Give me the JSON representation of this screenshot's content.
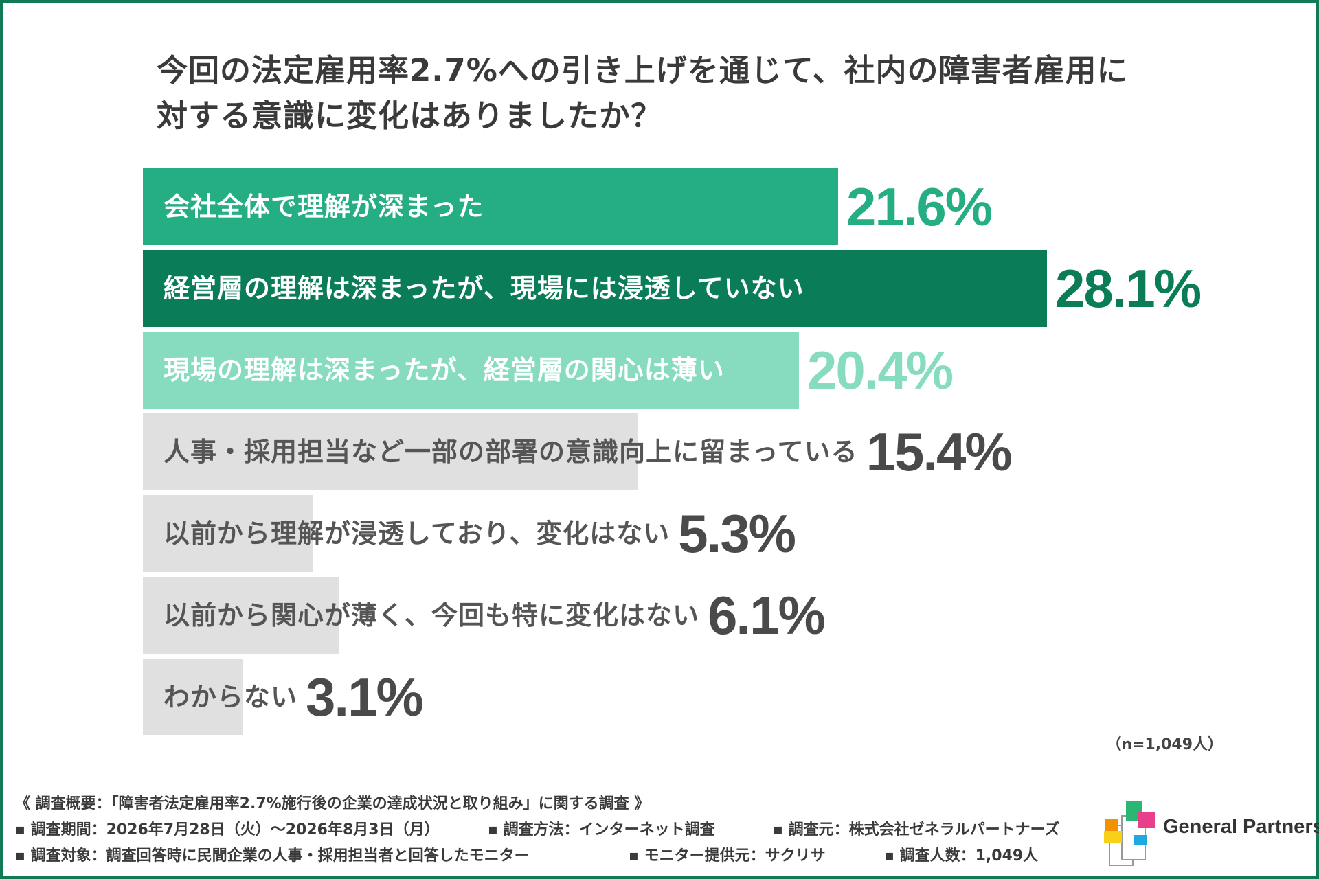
{
  "question": {
    "line1": "今回の法定雇用率2.7%への引き上げを通じて、社内の障害者雇用に",
    "line2": "対する意識に変化はありましたか？"
  },
  "chart_data": {
    "type": "bar",
    "orientation": "horizontal",
    "categories": [
      "会社全体で理解が深まった",
      "経営層の理解は深まったが、現場には浸透していない",
      "現場の理解は深まったが、経営層の関心は薄い",
      "人事・採用担当など一部の部署の意識向上に留まっている",
      "以前から理解が浸透しており、変化はない",
      "以前から関心が薄く、今回も特に変化はない",
      "わからない"
    ],
    "values": [
      21.6,
      28.1,
      20.4,
      15.4,
      5.3,
      6.1,
      3.1
    ],
    "value_labels": [
      "21.6%",
      "28.1%",
      "20.4%",
      "15.4%",
      "5.3%",
      "6.1%",
      "3.1%"
    ],
    "bar_colors": [
      "#25ad84",
      "#0a7d58",
      "#87dcc0",
      "#e0e0e0",
      "#e0e0e0",
      "#e0e0e0",
      "#e0e0e0"
    ],
    "category_label_colors": [
      "#ffffff",
      "#ffffff",
      "#ffffff",
      "#555555",
      "#555555",
      "#555555",
      "#555555"
    ],
    "value_label_colors": [
      "#25ad84",
      "#0a7d58",
      "#87dcc0",
      "#4a4a4a",
      "#4a4a4a",
      "#4a4a4a",
      "#4a4a4a"
    ],
    "xlim": [
      0,
      28.1
    ],
    "n_label": "（n=1,049人）"
  },
  "footer": {
    "survey_title": "《 調査概要：「障害者法定雇用率2.7%施行後の企業の達成状況と取り組み」に関する調査 》",
    "period": "▪ 調査期間：2026年7月28日（火）～2026年8月3日（月）",
    "method": "▪ 調査方法：インターネット調査",
    "source": "▪ 調査元：株式会社ゼネラルパートナーズ",
    "target": "▪ 調査対象：調査回答時に民間企業の人事・採用担当者と回答したモニター",
    "provider": "▪ モニター提供元：サクリサ",
    "respondents": "▪ 調査人数：1,049人"
  },
  "logo": {
    "text": "General Partners",
    "colors": [
      "#2bb673",
      "#e83e8c",
      "#f7d117",
      "#f39200",
      "#1fa9e1"
    ]
  },
  "frame_color": "#0f7a55"
}
